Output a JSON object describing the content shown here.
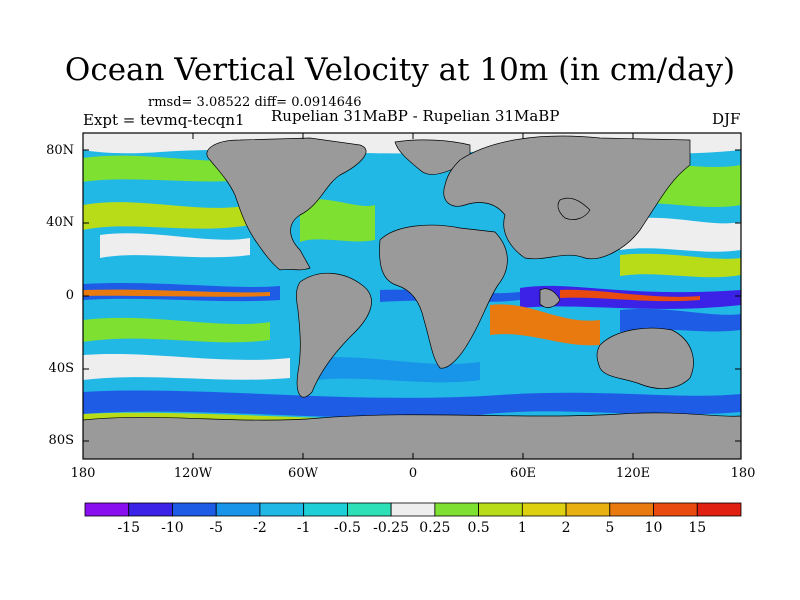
{
  "title": "Ocean Vertical Velocity at 10m (in cm/day)",
  "stats_text": "rmsd= 3.08522 diff= 0.0914646",
  "expt_text": "Expt = tevmq-tecqn1",
  "subtitle": "Rupelian 31MaBP - Rupelian 31MaBP",
  "season": "DJF",
  "lat_labels": [
    "80N",
    "40N",
    "0",
    "40S",
    "80S"
  ],
  "lon_labels": [
    "180",
    "120W",
    "60W",
    "0",
    "60E",
    "120E",
    "180"
  ],
  "colorbar": {
    "labels": [
      "-15",
      "-10",
      "-5",
      "-2",
      "-1",
      "-0.5",
      "-0.25",
      "0.25",
      "0.5",
      "1",
      "2",
      "5",
      "10",
      "15"
    ],
    "colors": [
      "#8a0ff0",
      "#3b22e6",
      "#1f5ce6",
      "#1894e8",
      "#21b8e6",
      "#1fcfd8",
      "#2ee0b8",
      "#eeeeee",
      "#7ee030",
      "#b8dd18",
      "#ddd010",
      "#e8b010",
      "#e87a10",
      "#e84a10",
      "#e02010"
    ]
  },
  "colors": {
    "land": "#9a9a9a",
    "ocean_base": "#21b8e6"
  }
}
